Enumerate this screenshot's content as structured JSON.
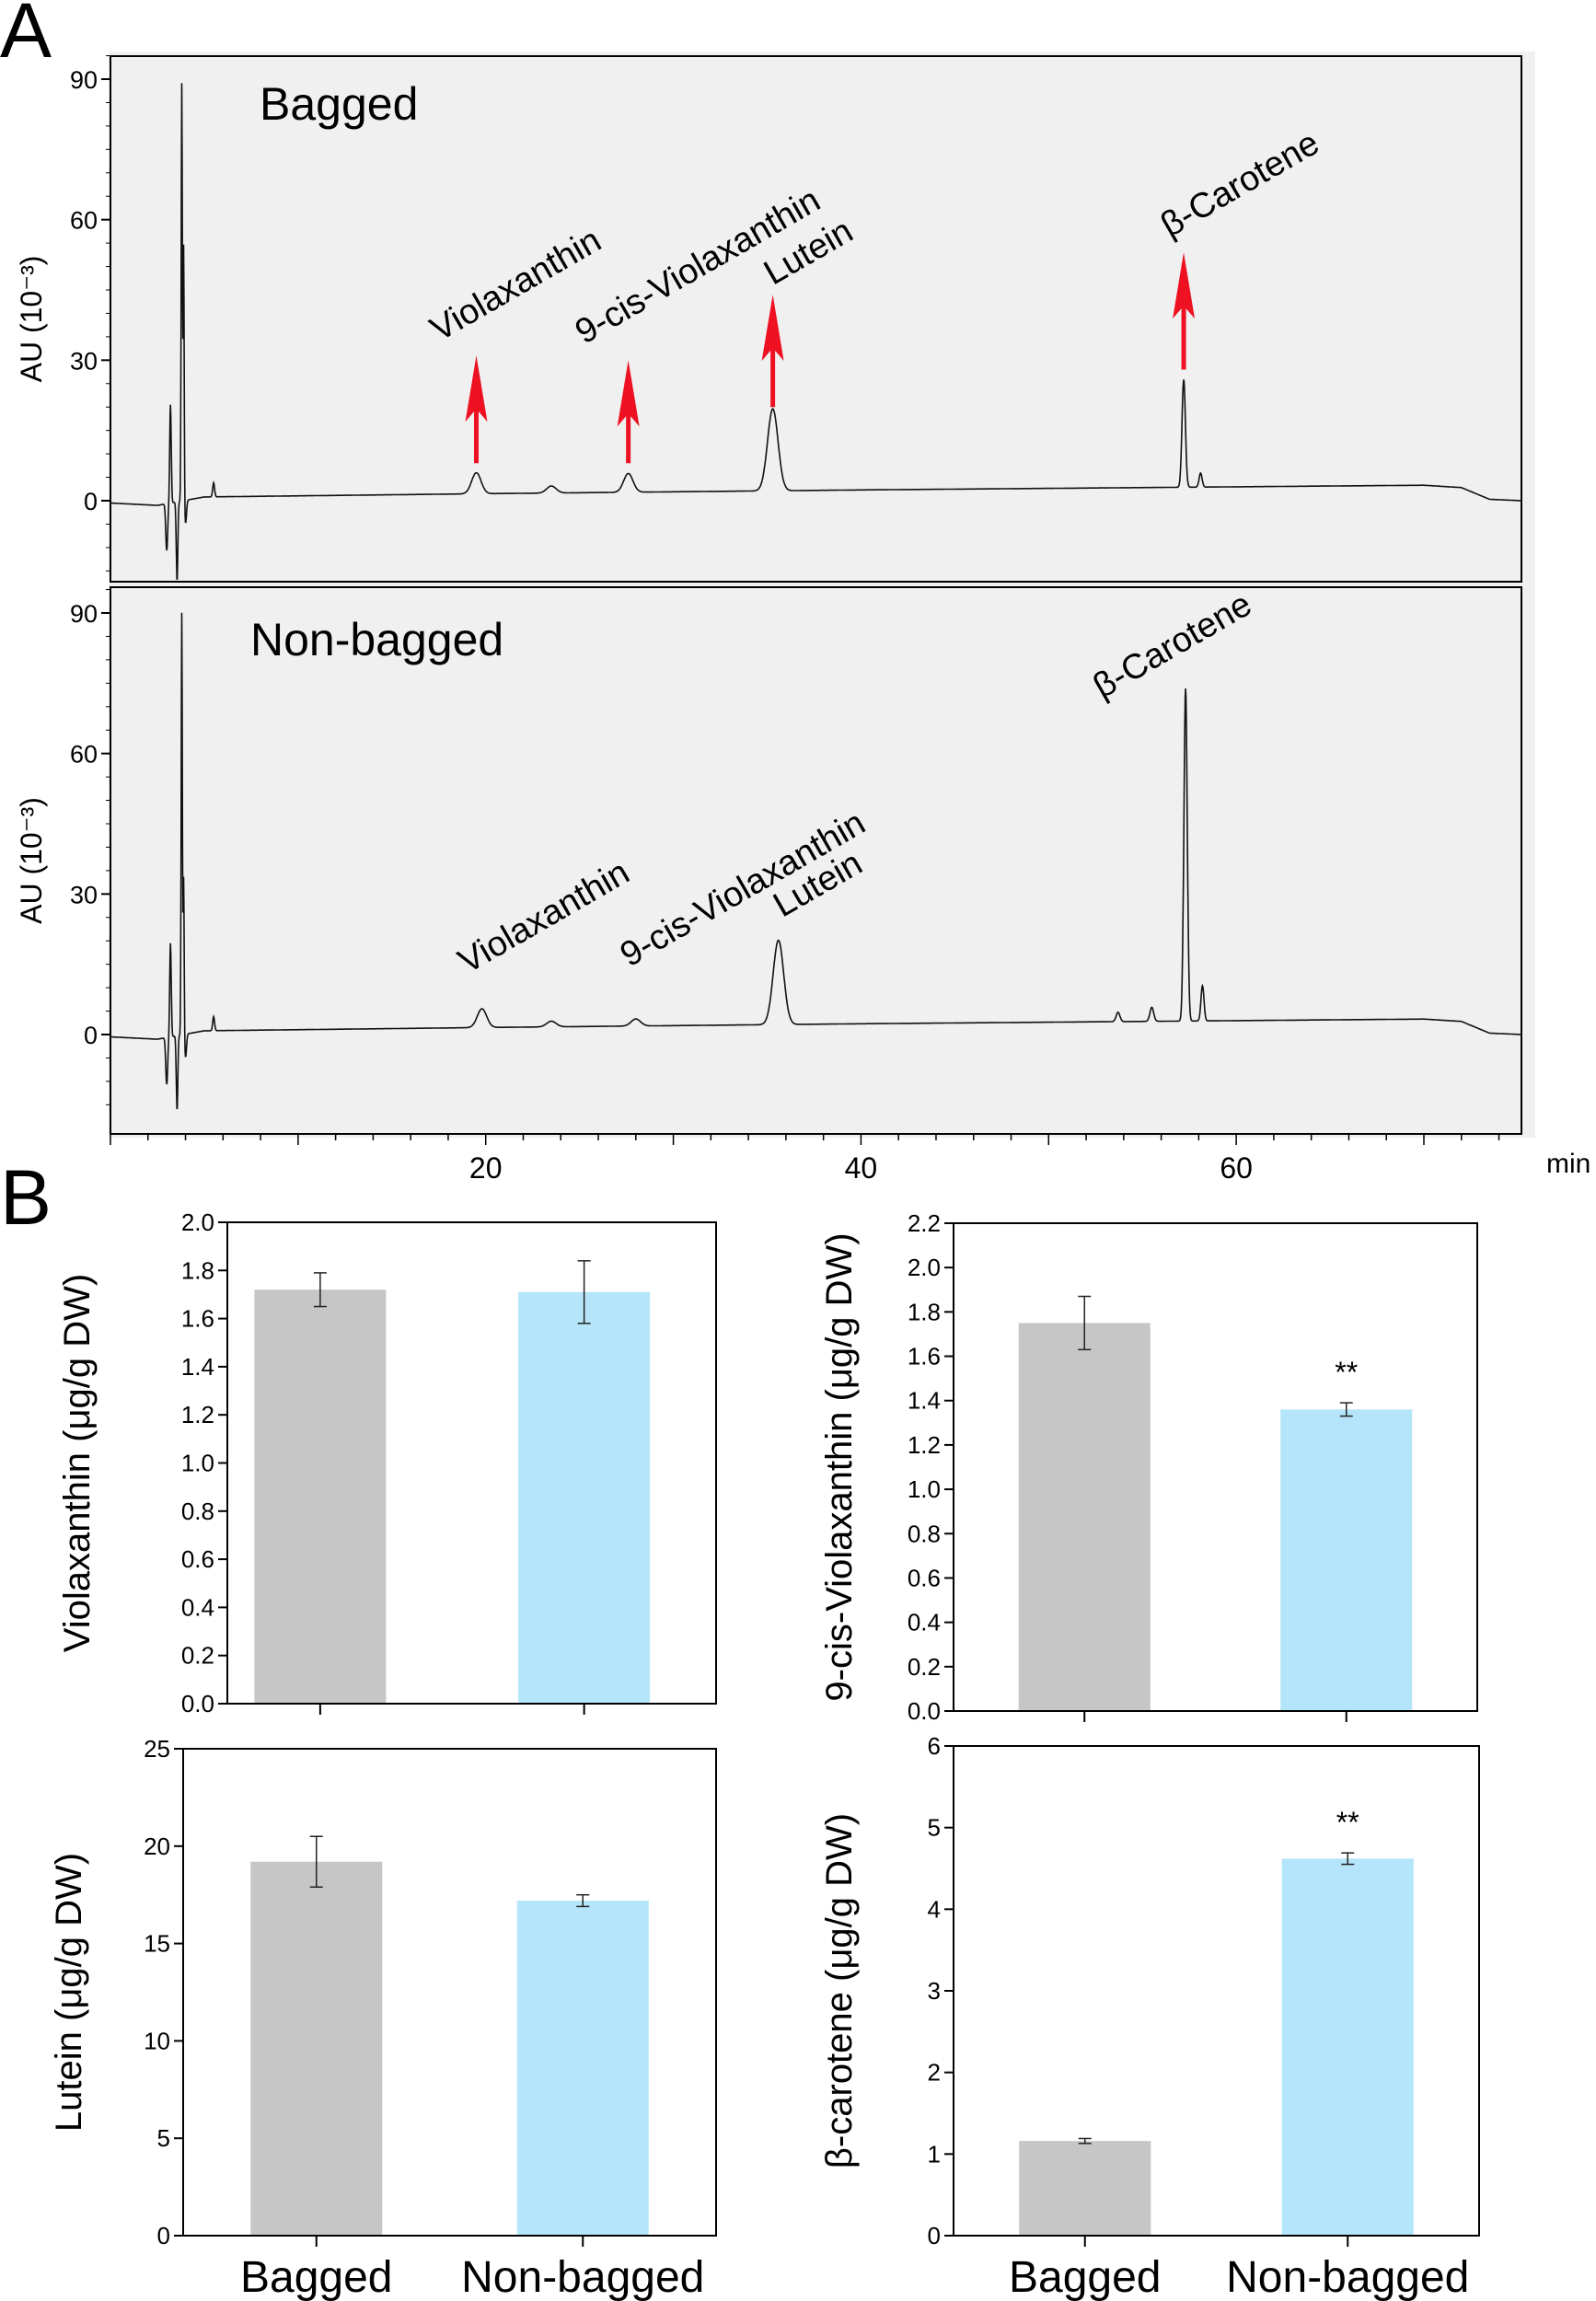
{
  "panel_labels": {
    "a": "A",
    "b": "B"
  },
  "colors": {
    "bagged": "#c6c6c6",
    "non_bagged": "#b4e5fa",
    "arrow": "#ee1122",
    "panel_bg": "#f0f0f0"
  },
  "chart_data": [
    {
      "type": "line",
      "title": "Bagged",
      "ylabel": "AU (10⁻³)",
      "xlabel": "min",
      "xlim": [
        0,
        75.2
      ],
      "ylim": [
        -17,
        97
      ],
      "yticks": [
        "0",
        "30",
        "60",
        "90"
      ],
      "ytick_values": [
        0,
        30,
        60,
        90
      ],
      "xticks": [
        "20",
        "40",
        "60"
      ],
      "xtick_values": [
        20,
        40,
        60
      ],
      "baseline": [
        [
          0,
          -0.5
        ],
        [
          2.5,
          -1
        ],
        [
          5,
          0.8
        ],
        [
          20,
          1.5
        ],
        [
          40,
          2.3
        ],
        [
          70,
          3.3
        ],
        [
          72,
          2.8
        ],
        [
          73.5,
          0.3
        ],
        [
          75.2,
          0
        ]
      ],
      "peaks": [
        {
          "t": 3.0,
          "h": -10,
          "w": 0.05
        },
        {
          "t": 3.2,
          "h": 21,
          "w": 0.04
        },
        {
          "t": 3.55,
          "h": -17,
          "w": 0.04
        },
        {
          "t": 3.8,
          "h": 89,
          "w": 0.03
        },
        {
          "t": 3.9,
          "h": 55,
          "w": 0.03
        },
        {
          "t": 4.0,
          "h": -5,
          "w": 0.05
        },
        {
          "t": 5.5,
          "h": 3,
          "w": 0.05
        },
        {
          "t": 19.5,
          "h": 4.5,
          "w": 0.25
        },
        {
          "t": 23.5,
          "h": 1.5,
          "w": 0.25
        },
        {
          "t": 27.6,
          "h": 4,
          "w": 0.25
        },
        {
          "t": 35.3,
          "h": 17.5,
          "w": 0.28
        },
        {
          "t": 57.2,
          "h": 23,
          "w": 0.09
        },
        {
          "t": 58.1,
          "h": 3,
          "w": 0.08
        }
      ],
      "annotations": [
        {
          "label": "Violaxanthin",
          "t": 19.5,
          "arrow": true
        },
        {
          "label": "9-cis-Violaxanthin",
          "t": 27.6,
          "arrow": true
        },
        {
          "label": "Lutein",
          "t": 35.3,
          "arrow": true
        },
        {
          "label": "β-Carotene",
          "t": 57.2,
          "arrow": true
        }
      ]
    },
    {
      "type": "line",
      "title": "Non-bagged",
      "ylabel": "AU (10⁻³)",
      "xlabel": "min",
      "xlim": [
        0,
        75.2
      ],
      "ylim": [
        -17,
        97
      ],
      "yticks": [
        "0",
        "30",
        "60",
        "90"
      ],
      "ytick_values": [
        0,
        30,
        60,
        90
      ],
      "baseline": [
        [
          0,
          -0.5
        ],
        [
          2.5,
          -1
        ],
        [
          5,
          0.8
        ],
        [
          20,
          1.5
        ],
        [
          40,
          2.3
        ],
        [
          70,
          3.3
        ],
        [
          72,
          2.8
        ],
        [
          73.5,
          0.3
        ],
        [
          75.2,
          0
        ]
      ],
      "peaks": [
        {
          "t": 3.0,
          "h": -10,
          "w": 0.05
        },
        {
          "t": 3.2,
          "h": 20,
          "w": 0.04
        },
        {
          "t": 3.55,
          "h": -16,
          "w": 0.04
        },
        {
          "t": 3.8,
          "h": 90,
          "w": 0.03
        },
        {
          "t": 3.9,
          "h": 34,
          "w": 0.03
        },
        {
          "t": 4.0,
          "h": -5,
          "w": 0.05
        },
        {
          "t": 5.5,
          "h": 3,
          "w": 0.05
        },
        {
          "t": 19.8,
          "h": 4,
          "w": 0.25
        },
        {
          "t": 23.5,
          "h": 1.2,
          "w": 0.25
        },
        {
          "t": 28.0,
          "h": 1.5,
          "w": 0.25
        },
        {
          "t": 35.6,
          "h": 18,
          "w": 0.28
        },
        {
          "t": 53.7,
          "h": 2,
          "w": 0.1
        },
        {
          "t": 55.5,
          "h": 3,
          "w": 0.1
        },
        {
          "t": 57.3,
          "h": 71,
          "w": 0.09
        },
        {
          "t": 58.2,
          "h": 7.5,
          "w": 0.08
        }
      ],
      "annotations": [
        {
          "label": "Violaxanthin",
          "t": 19.8,
          "arrow": false
        },
        {
          "label": "9-cis-Violaxanthin",
          "t": 28.0,
          "arrow": false
        },
        {
          "label": "Lutein",
          "t": 35.6,
          "arrow": false
        },
        {
          "label": "β-Carotene",
          "t": 57.3,
          "arrow": false
        }
      ]
    },
    {
      "type": "bar",
      "ylabel": "Violaxanthin (μg/g DW)",
      "categories": [
        "Bagged",
        "Non-bagged"
      ],
      "values": [
        1.72,
        1.71
      ],
      "errors": [
        0.07,
        0.13
      ],
      "significance": [
        "",
        ""
      ],
      "ylim": [
        0,
        2.0
      ],
      "yticks": [
        "0.0",
        "0.2",
        "0.4",
        "0.6",
        "0.8",
        "1.0",
        "1.2",
        "1.4",
        "1.6",
        "1.8",
        "2.0"
      ],
      "show_category_labels": false
    },
    {
      "type": "bar",
      "ylabel": "9-cis-Violaxanthin (μg/g DW)",
      "categories": [
        "Bagged",
        "Non-bagged"
      ],
      "values": [
        1.75,
        1.36
      ],
      "errors": [
        0.12,
        0.03
      ],
      "significance": [
        "",
        "**"
      ],
      "ylim": [
        0,
        2.2
      ],
      "yticks": [
        "0.0",
        "0.2",
        "0.4",
        "0.6",
        "0.8",
        "1.0",
        "1.2",
        "1.4",
        "1.6",
        "1.8",
        "2.0",
        "2.2"
      ],
      "show_category_labels": false
    },
    {
      "type": "bar",
      "ylabel": "Lutein (μg/g DW)",
      "categories": [
        "Bagged",
        "Non-bagged"
      ],
      "values": [
        19.2,
        17.2
      ],
      "errors": [
        1.3,
        0.3
      ],
      "significance": [
        "",
        ""
      ],
      "ylim": [
        0,
        25
      ],
      "yticks": [
        "0",
        "5",
        "10",
        "15",
        "20",
        "25"
      ],
      "show_category_labels": true
    },
    {
      "type": "bar",
      "ylabel": "β-carotene (μg/g DW)",
      "categories": [
        "Bagged",
        "Non-bagged"
      ],
      "values": [
        1.16,
        4.62
      ],
      "errors": [
        0.03,
        0.07
      ],
      "significance": [
        "",
        "**"
      ],
      "ylim": [
        0,
        6
      ],
      "yticks": [
        "0",
        "1",
        "2",
        "3",
        "4",
        "5",
        "6"
      ],
      "show_category_labels": true
    }
  ]
}
